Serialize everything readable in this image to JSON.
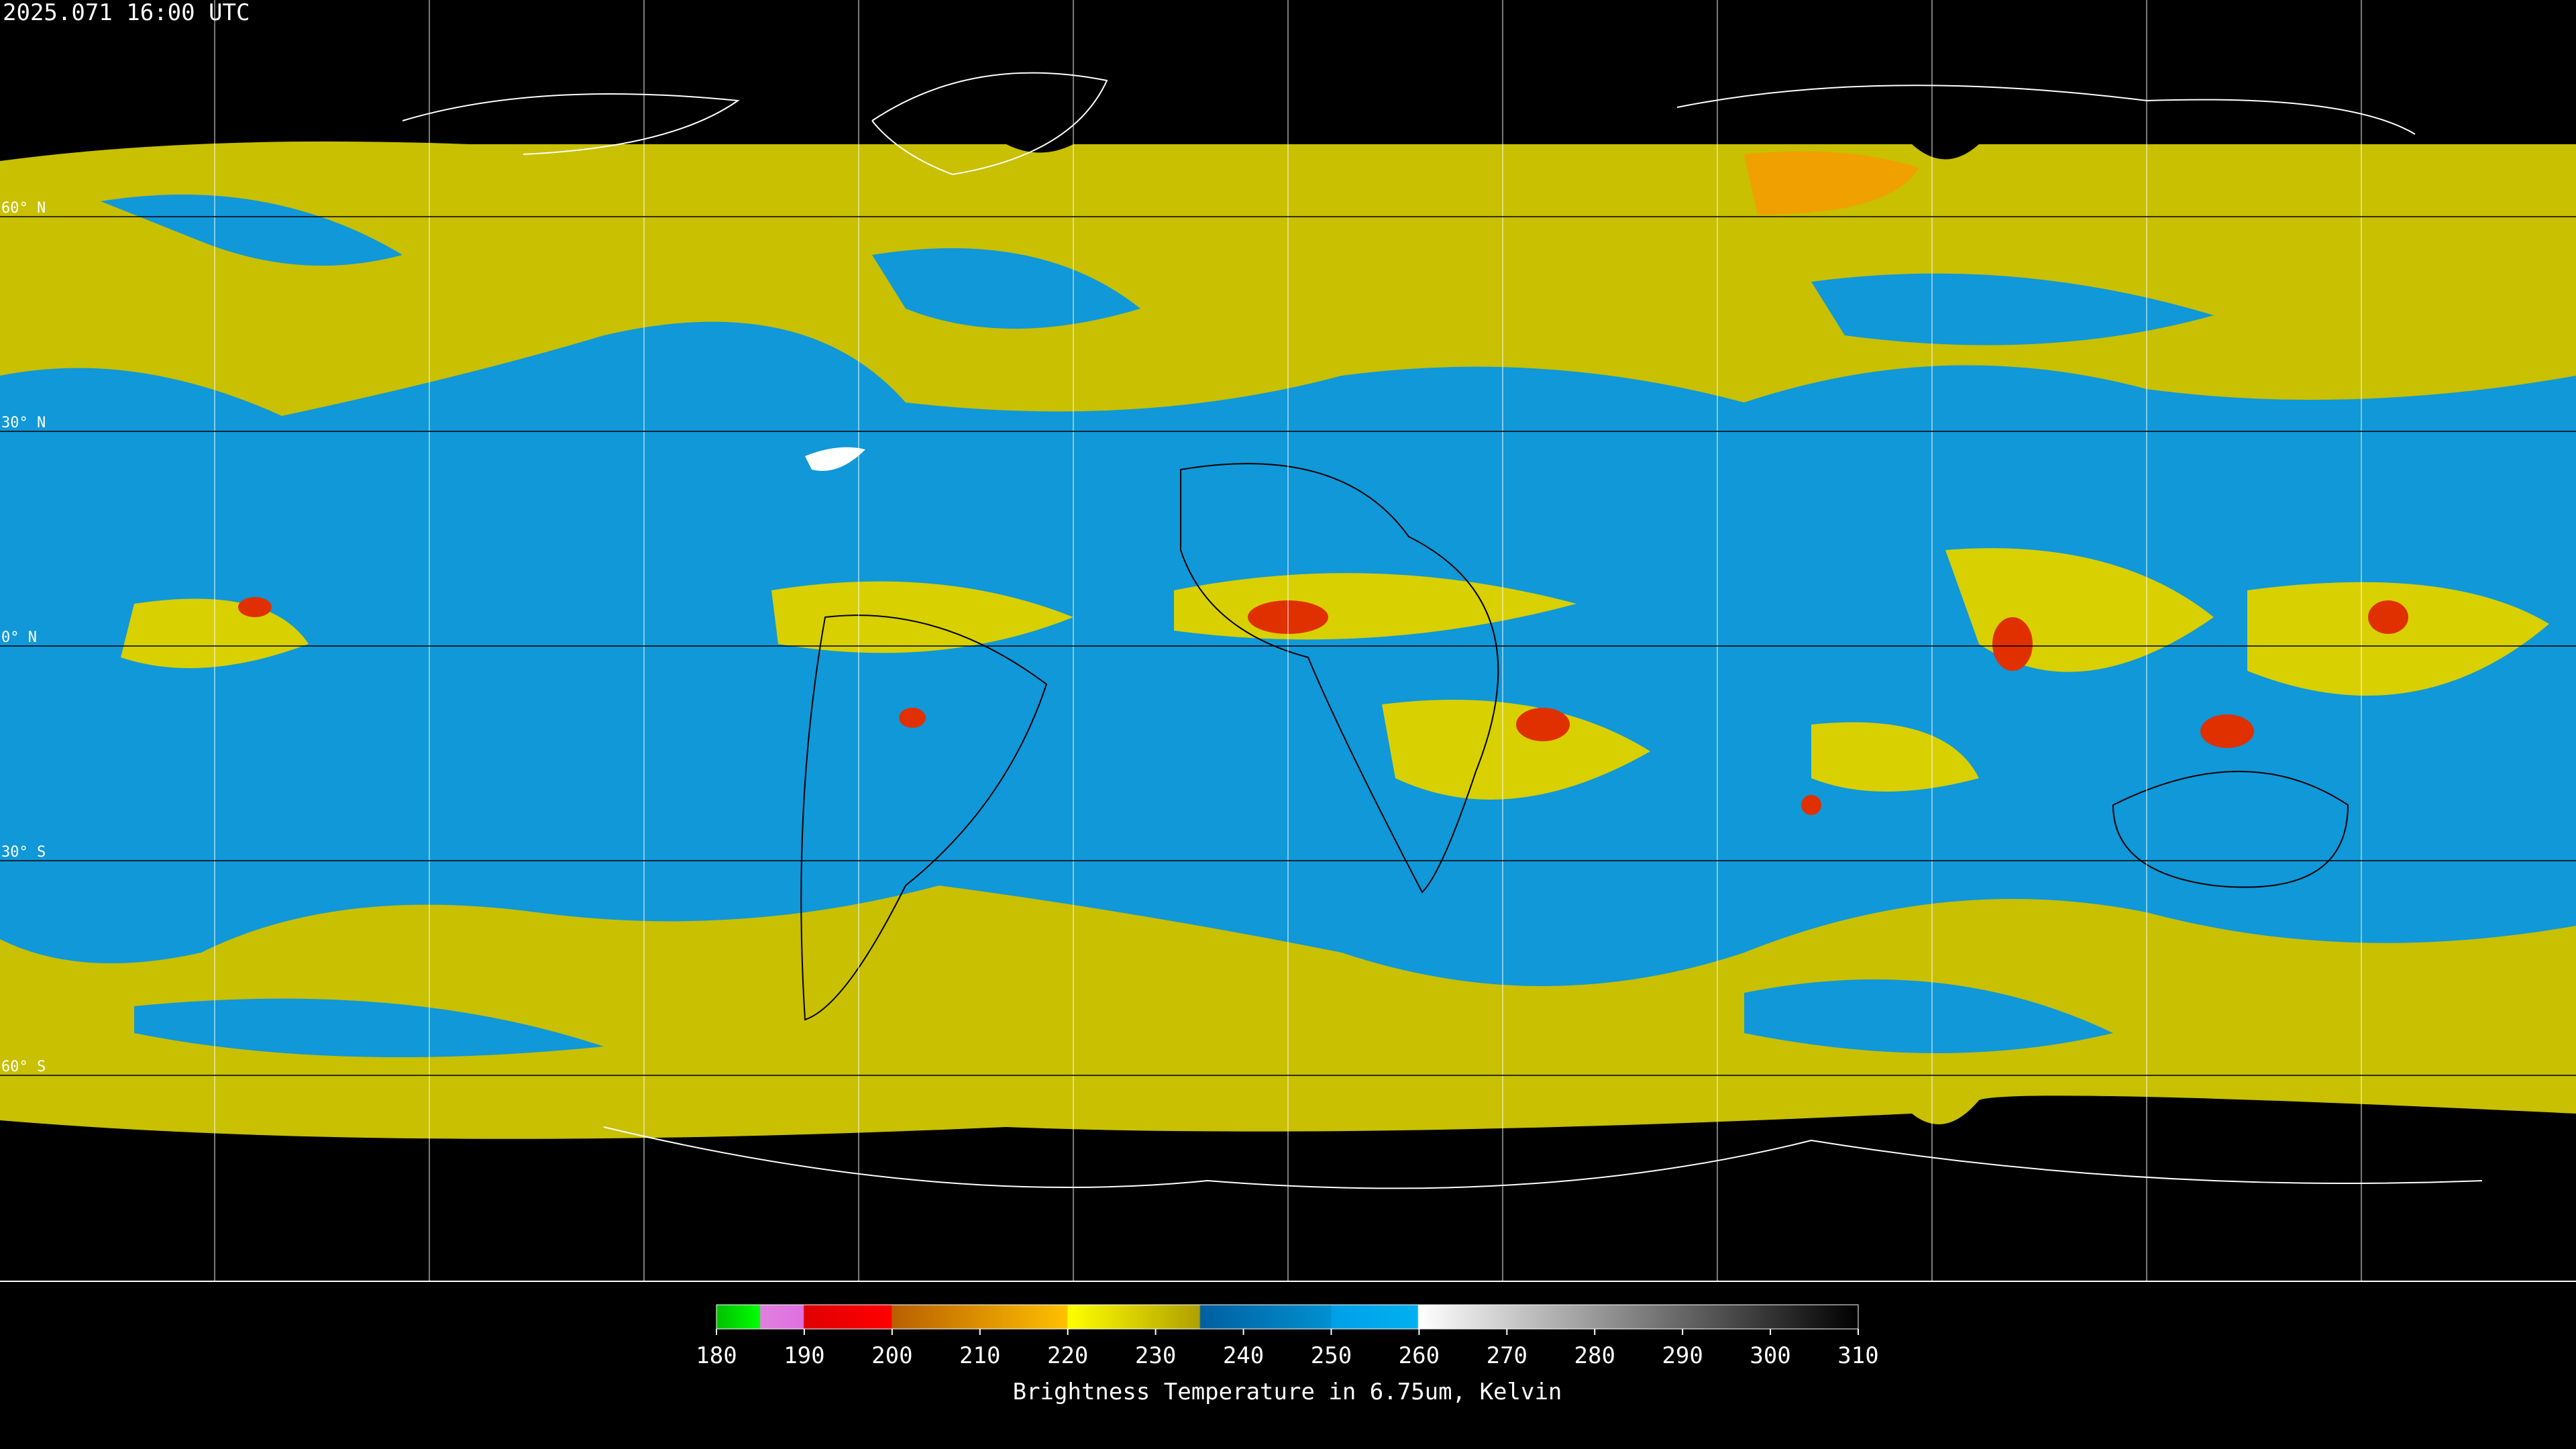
{
  "header": {
    "timestamp": "2025.071 16:00 UTC"
  },
  "map": {
    "lat_labels": [
      "60° N",
      "30° N",
      "0° N",
      "30° S",
      "60° S"
    ]
  },
  "colorbar": {
    "ticks": [
      180,
      190,
      200,
      210,
      220,
      230,
      240,
      250,
      260,
      270,
      280,
      290,
      300,
      310
    ],
    "label": "Brightness Temperature in 6.75um, Kelvin"
  }
}
